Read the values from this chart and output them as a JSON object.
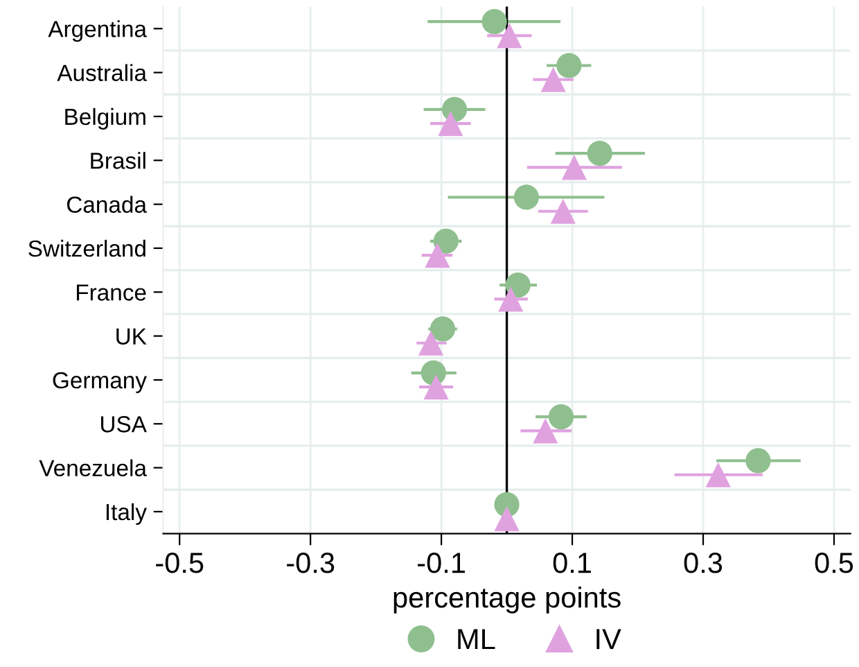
{
  "chart_data": {
    "type": "scatter",
    "orientation": "horizontal",
    "categories": [
      "Argentina",
      "Australia",
      "Belgium",
      "Brasil",
      "Canada",
      "Switzerland",
      "France",
      "UK",
      "Germany",
      "USA",
      "Venezuela",
      "Italy"
    ],
    "series": [
      {
        "name": "ML",
        "color": "#8fbf8f",
        "marker": "circle",
        "values": [
          -0.019,
          0.095,
          -0.08,
          0.142,
          0.03,
          -0.093,
          0.017,
          -0.098,
          -0.112,
          0.083,
          0.384,
          0.0
        ],
        "errors": [
          [
            -0.121,
            0.082
          ],
          [
            0.061,
            0.129
          ],
          [
            -0.127,
            -0.033
          ],
          [
            0.074,
            0.211
          ],
          [
            -0.09,
            0.149
          ],
          [
            -0.117,
            -0.069
          ],
          [
            -0.011,
            0.046
          ],
          [
            -0.12,
            -0.076
          ],
          [
            -0.146,
            -0.077
          ],
          [
            0.044,
            0.122
          ],
          [
            0.32,
            0.449
          ],
          null
        ]
      },
      {
        "name": "IV",
        "color": "#dfa2df",
        "marker": "triangle",
        "values": [
          0.004,
          0.071,
          -0.086,
          0.103,
          0.086,
          -0.106,
          0.006,
          -0.116,
          -0.108,
          0.059,
          0.323,
          0.0
        ],
        "errors": [
          [
            -0.03,
            0.038
          ],
          [
            0.04,
            0.102
          ],
          [
            -0.117,
            -0.055
          ],
          [
            0.031,
            0.176
          ],
          [
            0.048,
            0.124
          ],
          [
            -0.13,
            -0.083
          ],
          [
            -0.019,
            0.032
          ],
          [
            -0.138,
            -0.092
          ],
          [
            -0.134,
            -0.082
          ],
          [
            0.021,
            0.099
          ],
          [
            0.256,
            0.391
          ],
          null
        ]
      }
    ],
    "xlabel": "percentage points",
    "xlim": [
      -0.525,
      0.525
    ],
    "xticks": [
      -0.5,
      -0.3,
      -0.1,
      0.1,
      0.3,
      0.5
    ],
    "ref_lines": [
      {
        "axis": "x",
        "value": 0,
        "color": "#000000"
      }
    ],
    "grid": true,
    "legend": "bottom"
  }
}
